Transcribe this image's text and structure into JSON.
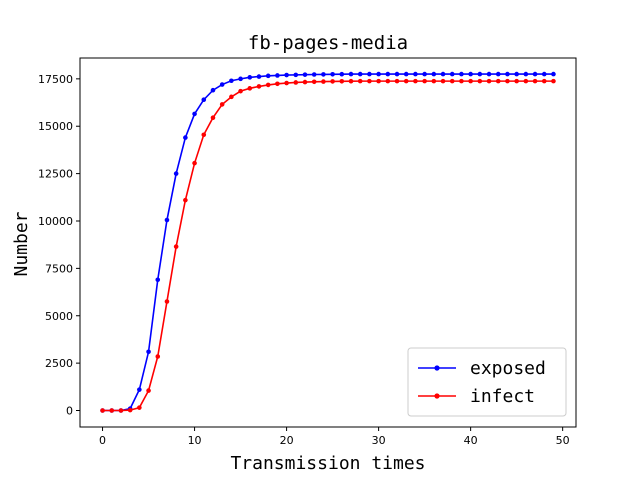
{
  "chart_data": {
    "type": "line",
    "title": "fb-pages-media",
    "xlabel": "Transmission times",
    "ylabel": "Number",
    "xlim": [
      -2.45,
      51.45
    ],
    "ylim": [
      -870,
      18600
    ],
    "xticks": [
      0,
      10,
      20,
      30,
      40,
      50
    ],
    "yticks": [
      0,
      2500,
      5000,
      7500,
      10000,
      12500,
      15000,
      17500
    ],
    "grid": false,
    "legend_position": "lower-right",
    "x": [
      0,
      1,
      2,
      3,
      4,
      5,
      6,
      7,
      8,
      9,
      10,
      11,
      12,
      13,
      14,
      15,
      16,
      17,
      18,
      19,
      20,
      21,
      22,
      23,
      24,
      25,
      26,
      27,
      28,
      29,
      30,
      31,
      32,
      33,
      34,
      35,
      36,
      37,
      38,
      39,
      40,
      41,
      42,
      43,
      44,
      45,
      46,
      47,
      48,
      49
    ],
    "series": [
      {
        "name": "exposed",
        "color": "#0000ff",
        "marker": "circle",
        "values": [
          0,
          0,
          0,
          100,
          1100,
          3100,
          6900,
          10050,
          12500,
          14400,
          15650,
          16400,
          16900,
          17200,
          17400,
          17500,
          17580,
          17620,
          17660,
          17680,
          17700,
          17710,
          17720,
          17730,
          17735,
          17740,
          17745,
          17750,
          17750,
          17750,
          17750,
          17750,
          17750,
          17750,
          17750,
          17750,
          17750,
          17750,
          17750,
          17750,
          17750,
          17750,
          17750,
          17750,
          17750,
          17750,
          17750,
          17750,
          17750,
          17750
        ]
      },
      {
        "name": "infect",
        "color": "#ff0000",
        "marker": "circle",
        "values": [
          0,
          0,
          0,
          20,
          150,
          1050,
          2850,
          5750,
          8650,
          11100,
          13050,
          14550,
          15450,
          16150,
          16550,
          16850,
          17000,
          17100,
          17180,
          17240,
          17280,
          17310,
          17330,
          17345,
          17355,
          17365,
          17370,
          17375,
          17380,
          17380,
          17380,
          17380,
          17380,
          17380,
          17380,
          17380,
          17380,
          17380,
          17380,
          17380,
          17380,
          17380,
          17380,
          17380,
          17380,
          17380,
          17380,
          17380,
          17380,
          17380
        ]
      }
    ]
  }
}
